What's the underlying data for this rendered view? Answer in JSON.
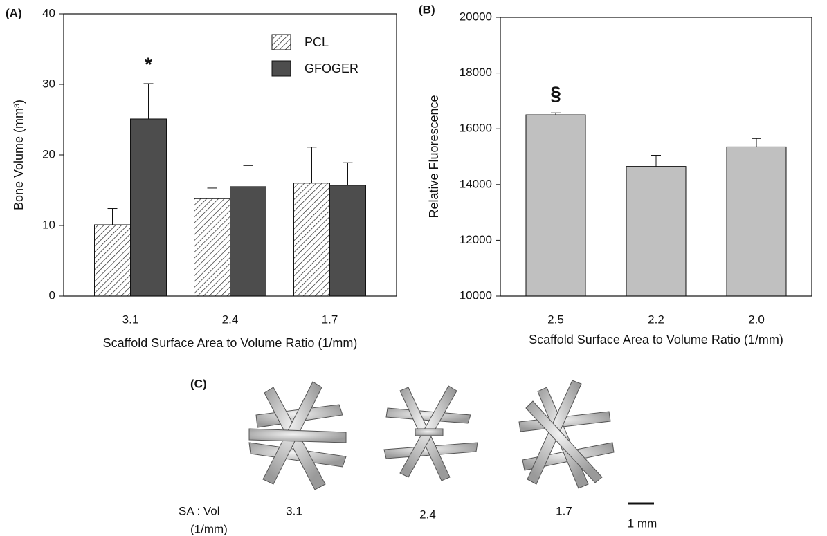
{
  "chart_data": [
    {
      "type": "bar",
      "panel": "(A)",
      "ylabel": "Bone Volume (mm³)",
      "xlabel": "Scaffold Surface Area to Volume Ratio (1/mm)",
      "categories": [
        "3.1",
        "2.4",
        "1.7"
      ],
      "series": [
        {
          "name": "PCL",
          "color": "#ffffff",
          "hatch": true,
          "values": [
            10.1,
            13.8,
            16.0
          ],
          "errors": [
            2.3,
            1.5,
            5.1
          ]
        },
        {
          "name": "GFOGER",
          "color": "#4d4d4d",
          "hatch": false,
          "values": [
            25.1,
            15.5,
            15.7
          ],
          "errors": [
            5.0,
            3.0,
            3.2
          ]
        }
      ],
      "annotation": "*",
      "ylim": [
        0,
        40
      ],
      "yticks": [
        0,
        10,
        20,
        30,
        40
      ],
      "legend": "upper right"
    },
    {
      "type": "bar",
      "panel": "(B)",
      "ylabel": "Relative Fluorescence",
      "xlabel": "Scaffold Surface Area to Volume Ratio (1/mm)",
      "categories": [
        "2.5",
        "2.2",
        "2.0"
      ],
      "series": [
        {
          "color": "#c0c0c0",
          "hatch": false,
          "values": [
            16500,
            14650,
            15350
          ],
          "errors": [
            70,
            400,
            300
          ]
        }
      ],
      "annotation": "§",
      "ylim": [
        10000,
        20000
      ],
      "yticks": [
        10000,
        12000,
        14000,
        16000,
        18000,
        20000
      ]
    }
  ],
  "panel_c": {
    "label": "(C)",
    "row_label": "SA : Vol",
    "row_unit": "(1/mm)",
    "ratios": [
      "3.1",
      "2.4",
      "1.7"
    ],
    "scale_bar": "1 mm"
  }
}
